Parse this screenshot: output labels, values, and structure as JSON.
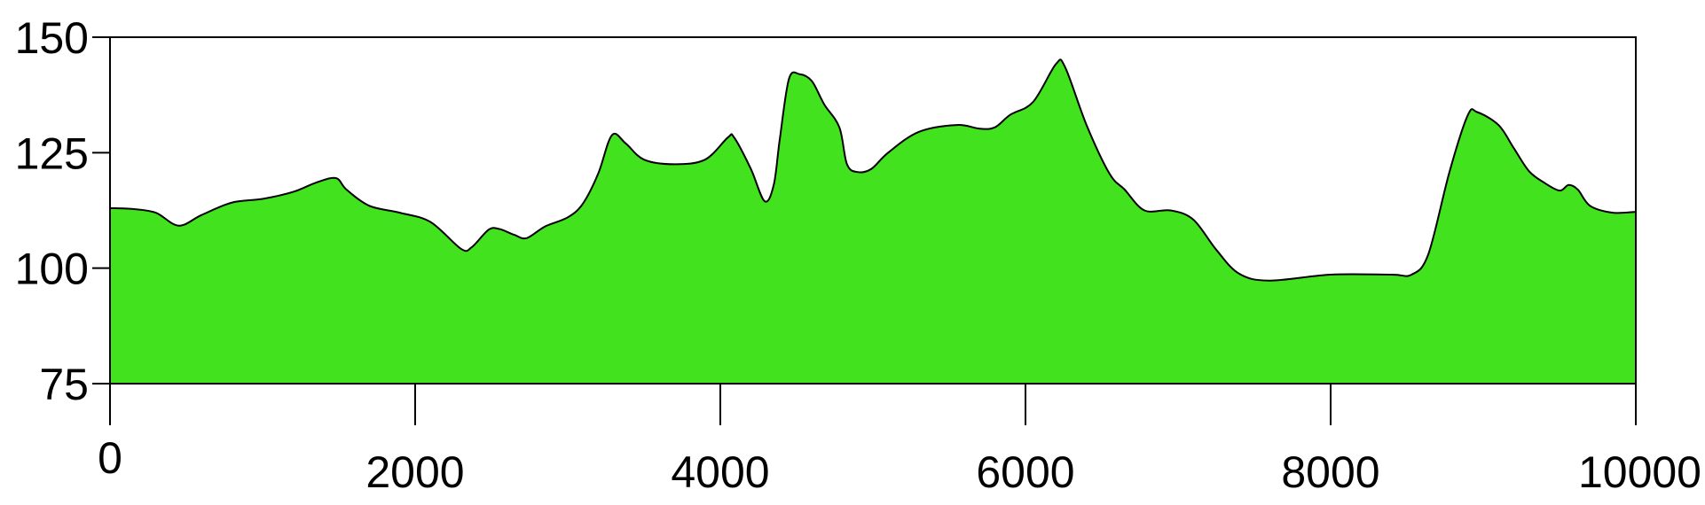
{
  "chart_data": {
    "type": "area",
    "title": "",
    "xlabel": "",
    "ylabel": "",
    "xlim": [
      0,
      10000
    ],
    "ylim": [
      75,
      150
    ],
    "grid": false,
    "fill_color": "#43e21f",
    "line_color": "#000000",
    "x_ticks": [
      {
        "value": 0,
        "label": "0"
      },
      {
        "value": 2000,
        "label": "2000"
      },
      {
        "value": 4000,
        "label": "4000"
      },
      {
        "value": 6000,
        "label": "6000"
      },
      {
        "value": 8000,
        "label": "8000"
      },
      {
        "value": 10000,
        "label": "10000"
      }
    ],
    "y_ticks": [
      {
        "value": 75,
        "label": "75"
      },
      {
        "value": 100,
        "label": "100"
      },
      {
        "value": 125,
        "label": "125"
      },
      {
        "value": 150,
        "label": "150"
      }
    ],
    "series": [
      {
        "x": [
          0,
          150,
          300,
          450,
          600,
          800,
          1000,
          1200,
          1350,
          1480,
          1550,
          1700,
          1900,
          2100,
          2300,
          2370,
          2480,
          2550,
          2650,
          2730,
          2850,
          3000,
          3100,
          3200,
          3290,
          3380,
          3500,
          3700,
          3900,
          4050,
          4090,
          4200,
          4290,
          4350,
          4390,
          4450,
          4520,
          4600,
          4680,
          4780,
          4830,
          4900,
          4990,
          5100,
          5300,
          5550,
          5700,
          5800,
          5900,
          6050,
          6200,
          6260,
          6400,
          6550,
          6650,
          6780,
          6950,
          7100,
          7250,
          7400,
          7600,
          8000,
          8400,
          8530,
          8640,
          8780,
          8900,
          8960,
          9100,
          9200,
          9300,
          9400,
          9500,
          9560,
          9620,
          9700,
          9850,
          10000
        ],
        "y": [
          113,
          112.8,
          112,
          109.2,
          111.5,
          114.2,
          115,
          116.5,
          118.5,
          119.5,
          117,
          113.5,
          112,
          110,
          104.2,
          104.5,
          108.3,
          108.5,
          107.2,
          106.5,
          109,
          111,
          114,
          120.5,
          128.8,
          127,
          123.5,
          122.5,
          123.5,
          128.3,
          128.3,
          121.5,
          114.5,
          118,
          128,
          141,
          142,
          140.5,
          135.5,
          130.5,
          122.5,
          120.8,
          121.5,
          125,
          129.5,
          131,
          130.2,
          130.5,
          133.2,
          136,
          144.2,
          143.5,
          131,
          120.5,
          117,
          112.5,
          112.5,
          110.5,
          104,
          98.8,
          97.3,
          98.6,
          98.6,
          98.6,
          103,
          121,
          133.2,
          133.8,
          131,
          126,
          121,
          118.5,
          116.8,
          118,
          117,
          113.5,
          112,
          112.2
        ]
      }
    ]
  }
}
